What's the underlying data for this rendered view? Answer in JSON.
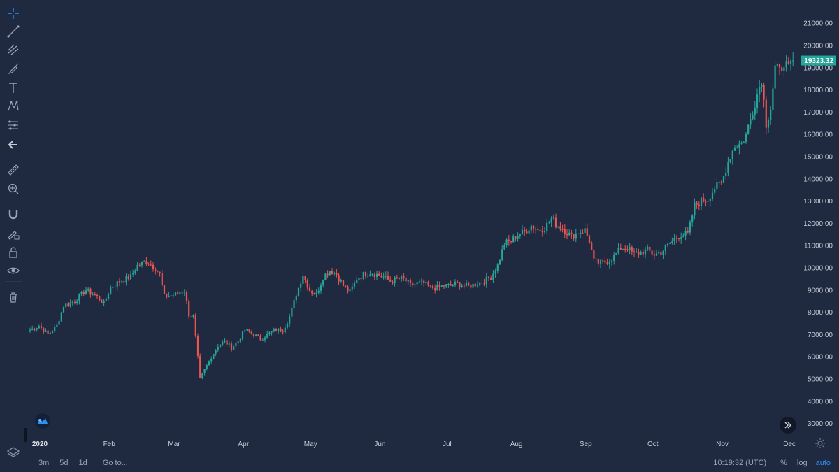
{
  "toolbar": {
    "tools": [
      "crosshair-icon",
      "trend-line-icon",
      "fib-icon",
      "brush-icon",
      "text-icon",
      "pattern-icon",
      "forecast-icon",
      "back-arrow-icon",
      "ruler-icon",
      "zoom-in-icon",
      "magnet-icon",
      "lock-drawing-icon",
      "unlock-icon",
      "eye-icon",
      "trash-icon"
    ]
  },
  "bottom_bar": {
    "range_buttons": [
      "3m",
      "5d",
      "1d"
    ],
    "goto_label": "Go to...",
    "time": "10:19:32 (UTC)",
    "percent_label": "%",
    "log_label": "log",
    "auto_label": "auto"
  },
  "colors": {
    "background": "#1f2a40",
    "up": "#26a69a",
    "down": "#ef5350",
    "last_price_bg": "#26a69a"
  },
  "chart_data": {
    "type": "candlestick",
    "last_price": 19323.32,
    "last_price_label": "19323.32",
    "y_axis": {
      "ticks": [
        3000,
        4000,
        5000,
        6000,
        7000,
        8000,
        9000,
        10000,
        11000,
        12000,
        13000,
        14000,
        15000,
        16000,
        17000,
        18000,
        19000,
        20000,
        21000
      ],
      "tick_labels": [
        "3000.00",
        "4000.00",
        "5000.00",
        "6000.00",
        "7000.00",
        "8000.00",
        "9000.00",
        "10000.00",
        "11000.00",
        "12000.00",
        "13000.00",
        "14000.00",
        "15000.00",
        "16000.00",
        "17000.00",
        "18000.00",
        "19000.00",
        "20000.00",
        "21000.00"
      ]
    },
    "x_axis": {
      "labels": [
        "2020",
        "Feb",
        "Mar",
        "Apr",
        "May",
        "Jun",
        "Jul",
        "Aug",
        "Sep",
        "Oct",
        "Nov",
        "Dec"
      ],
      "label_days": [
        0,
        31,
        60,
        91,
        121,
        152,
        182,
        213,
        244,
        274,
        305,
        335
      ]
    },
    "anchors": [
      [
        0,
        7200
      ],
      [
        4,
        7400
      ],
      [
        8,
        7000
      ],
      [
        12,
        7400
      ],
      [
        15,
        8300
      ],
      [
        20,
        8500
      ],
      [
        25,
        9000
      ],
      [
        30,
        8700
      ],
      [
        33,
        8400
      ],
      [
        36,
        9100
      ],
      [
        40,
        9400
      ],
      [
        45,
        9600
      ],
      [
        48,
        10100
      ],
      [
        52,
        10300
      ],
      [
        56,
        10000
      ],
      [
        58,
        9700
      ],
      [
        60,
        8700
      ],
      [
        65,
        8800
      ],
      [
        69,
        9000
      ],
      [
        71,
        7900
      ],
      [
        73,
        7800
      ],
      [
        76,
        5000
      ],
      [
        78,
        5400
      ],
      [
        81,
        6000
      ],
      [
        84,
        6500
      ],
      [
        87,
        6700
      ],
      [
        90,
        6400
      ],
      [
        93,
        6700
      ],
      [
        96,
        7200
      ],
      [
        100,
        7000
      ],
      [
        103,
        6800
      ],
      [
        106,
        7000
      ],
      [
        110,
        7200
      ],
      [
        113,
        7200
      ],
      [
        116,
        7800
      ],
      [
        119,
        8800
      ],
      [
        122,
        9700
      ],
      [
        125,
        9000
      ],
      [
        128,
        8800
      ],
      [
        131,
        9600
      ],
      [
        134,
        9900
      ],
      [
        137,
        9700
      ],
      [
        140,
        9200
      ],
      [
        143,
        8900
      ],
      [
        146,
        9500
      ],
      [
        149,
        9700
      ],
      [
        152,
        9800
      ],
      [
        155,
        9700
      ],
      [
        158,
        9600
      ],
      [
        161,
        9400
      ],
      [
        164,
        9500
      ],
      [
        167,
        9500
      ],
      [
        170,
        9200
      ],
      [
        173,
        9300
      ],
      [
        176,
        9300
      ],
      [
        179,
        9100
      ],
      [
        182,
        9100
      ],
      [
        185,
        9200
      ],
      [
        188,
        9200
      ],
      [
        191,
        9300
      ],
      [
        194,
        9200
      ],
      [
        197,
        9200
      ],
      [
        200,
        9300
      ],
      [
        203,
        9400
      ],
      [
        206,
        9600
      ],
      [
        209,
        10100
      ],
      [
        212,
        11100
      ],
      [
        215,
        11200
      ],
      [
        218,
        11500
      ],
      [
        221,
        11600
      ],
      [
        224,
        11900
      ],
      [
        227,
        11700
      ],
      [
        230,
        11800
      ],
      [
        233,
        12200
      ],
      [
        236,
        11900
      ],
      [
        239,
        11700
      ],
      [
        242,
        11400
      ],
      [
        245,
        11600
      ],
      [
        248,
        11700
      ],
      [
        250,
        11200
      ],
      [
        252,
        10300
      ],
      [
        255,
        10200
      ],
      [
        258,
        10300
      ],
      [
        261,
        10500
      ],
      [
        264,
        10900
      ],
      [
        267,
        10900
      ],
      [
        270,
        10600
      ],
      [
        273,
        10700
      ],
      [
        276,
        10800
      ],
      [
        279,
        10600
      ],
      [
        282,
        10700
      ],
      [
        285,
        11000
      ],
      [
        288,
        11300
      ],
      [
        291,
        11500
      ],
      [
        294,
        11500
      ],
      [
        297,
        12800
      ],
      [
        300,
        13000
      ],
      [
        303,
        13100
      ],
      [
        306,
        13600
      ],
      [
        309,
        13800
      ],
      [
        312,
        14800
      ],
      [
        315,
        15500
      ],
      [
        318,
        15600
      ],
      [
        320,
        16000
      ],
      [
        322,
        16700
      ],
      [
        325,
        17800
      ],
      [
        327,
        18500
      ],
      [
        328,
        17500
      ],
      [
        329,
        16500
      ],
      [
        331,
        17200
      ],
      [
        333,
        19000
      ],
      [
        335,
        18800
      ],
      [
        337,
        19300
      ],
      [
        339,
        18900
      ],
      [
        341,
        19323
      ]
    ]
  }
}
